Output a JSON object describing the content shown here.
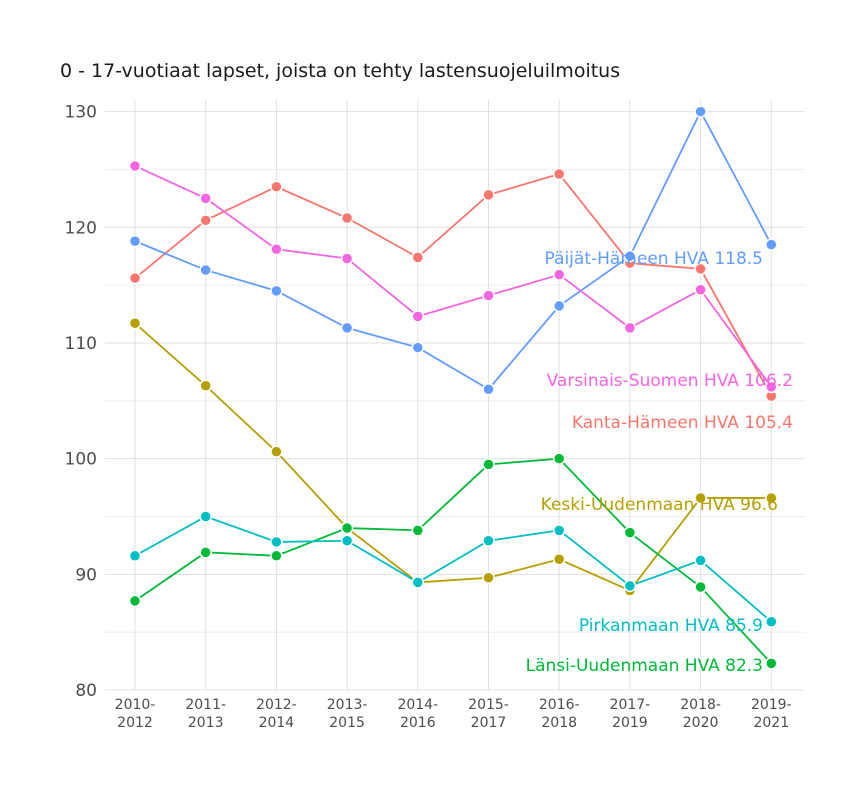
{
  "chart_data": {
    "type": "line",
    "title": "0 - 17-vuotiaat lapset, joista on tehty lastensuojeluilmoitus",
    "xlabel": "",
    "ylabel": "",
    "ylim": [
      80,
      131
    ],
    "yticks": [
      "80",
      "90",
      "100",
      "110",
      "120",
      "130"
    ],
    "categories": [
      [
        "2010-",
        "2012"
      ],
      [
        "2011-",
        "2013"
      ],
      [
        "2012-",
        "2014"
      ],
      [
        "2013-",
        "2015"
      ],
      [
        "2014-",
        "2016"
      ],
      [
        "2015-",
        "2017"
      ],
      [
        "2016-",
        "2018"
      ],
      [
        "2017-",
        "2019"
      ],
      [
        "2018-",
        "2020"
      ],
      [
        "2019-",
        "2021"
      ]
    ],
    "grid": true,
    "legend": "none",
    "series": [
      {
        "name": "Kanta-Hämeen HVA",
        "end_label": "Kanta-Hämeen HVA 105.4",
        "color": "#F8766D",
        "values": [
          115.6,
          120.6,
          123.5,
          120.8,
          117.4,
          122.8,
          124.6,
          116.9,
          116.4,
          105.4
        ]
      },
      {
        "name": "Keski-Uudenmaan HVA",
        "end_label": "Keski-Uudenmaan HVA 96.6",
        "color": "#B79F00",
        "values": [
          111.7,
          106.3,
          100.6,
          94.0,
          89.3,
          89.7,
          91.3,
          88.6,
          96.6,
          96.6
        ]
      },
      {
        "name": "Länsi-Uudenmaan HVA",
        "end_label": "Länsi-Uudenmaan HVA 82.3",
        "color": "#00BA38",
        "values": [
          87.7,
          91.9,
          91.6,
          94.0,
          93.8,
          99.5,
          100.0,
          93.6,
          88.9,
          82.3
        ]
      },
      {
        "name": "Pirkanmaan HVA",
        "end_label": "Pirkanmaan HVA 85.9",
        "color": "#00BFC4",
        "values": [
          91.6,
          95.0,
          92.8,
          92.9,
          89.3,
          92.9,
          93.8,
          89.0,
          91.2,
          85.9
        ]
      },
      {
        "name": "Päijät-Hämeen HVA",
        "end_label": "Päijät-Hämeen HVA 118.5",
        "color": "#619CFF",
        "values": [
          118.8,
          116.3,
          114.5,
          111.3,
          109.6,
          106.0,
          113.2,
          117.5,
          130.0,
          118.5
        ]
      },
      {
        "name": "Varsinais-Suomen HVA",
        "end_label": "Varsinais-Suomen HVA 106.2",
        "color": "#F564E3",
        "values": [
          125.3,
          122.5,
          118.1,
          117.3,
          112.3,
          114.1,
          115.9,
          111.3,
          114.6,
          106.2
        ]
      }
    ]
  }
}
